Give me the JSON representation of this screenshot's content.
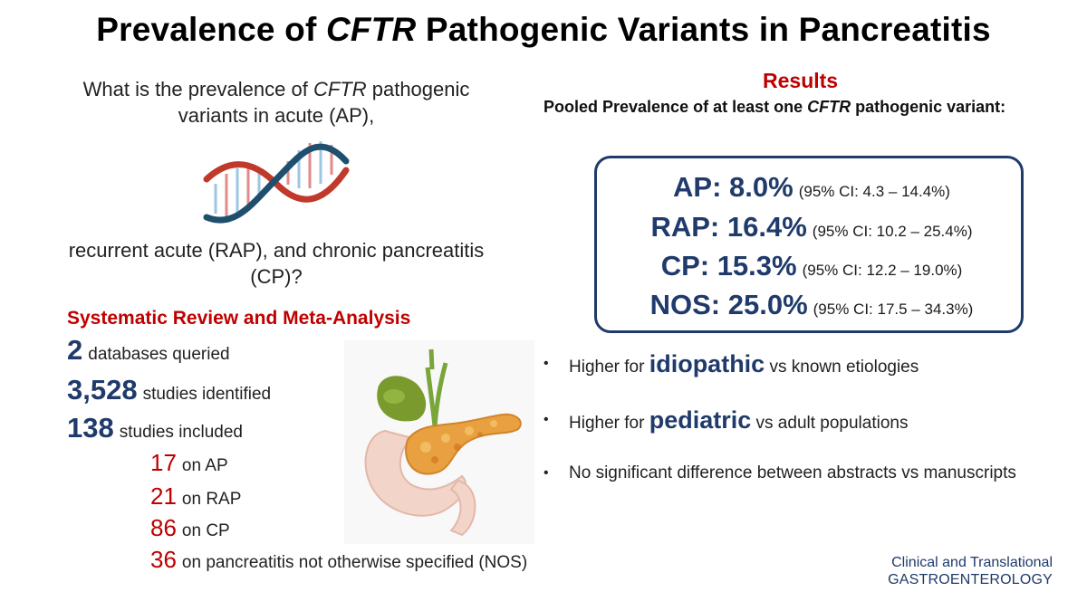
{
  "title_parts": [
    "Prevalence of ",
    "CFTR",
    " Pathogenic Variants in Pancreatitis"
  ],
  "question_top": [
    "What is the prevalence of ",
    "CFTR",
    " pathogenic variants in acute (AP),"
  ],
  "question_bottom": "recurrent acute (RAP), and chronic pancreatitis (CP)?",
  "sr_title": "Systematic Review and Meta-Analysis",
  "stats": [
    {
      "num": "2",
      "label": "databases queried"
    },
    {
      "num": "3,528",
      "label": "studies identified"
    },
    {
      "num": "138",
      "label": "studies included"
    }
  ],
  "breakdown": [
    {
      "num": "17",
      "label": "on AP"
    },
    {
      "num": "21",
      "label": "on RAP"
    },
    {
      "num": "86",
      "label": "on CP"
    },
    {
      "num": "36",
      "label": "on pancreatitis not otherwise specified (NOS)"
    }
  ],
  "results_title": "Results",
  "pooled_parts": [
    "Pooled Prevalence of at least one ",
    "CFTR",
    " pathogenic variant:"
  ],
  "results": [
    {
      "label": "AP: 8.0%",
      "ci": "(95% CI: 4.3 – 14.4%)"
    },
    {
      "label": "RAP: 16.4%",
      "ci": "(95% CI: 10.2 – 25.4%)"
    },
    {
      "label": "CP: 15.3%",
      "ci": "(95% CI: 12.2 – 19.0%)"
    },
    {
      "label": "NOS: 25.0%",
      "ci": "(95% CI: 17.5 – 34.3%)"
    }
  ],
  "bullets": [
    {
      "pre": "Higher for ",
      "hl": "idiopathic",
      "post": " vs known etiologies"
    },
    {
      "pre": "Higher for ",
      "hl": "pediatric",
      "post": " vs adult populations"
    },
    {
      "pre": "No significant difference between abstracts vs manuscripts",
      "hl": "",
      "post": ""
    }
  ],
  "bullet_symbol": "•",
  "journal": {
    "line1": "Clinical and Translational",
    "line2": "GASTROENTEROLOGY"
  },
  "images": {
    "dna": "dna-helix-icon",
    "pancreas": "pancreas-illustration"
  },
  "colors": {
    "accent_red": "#c00000",
    "navy": "#1f3a6b"
  }
}
